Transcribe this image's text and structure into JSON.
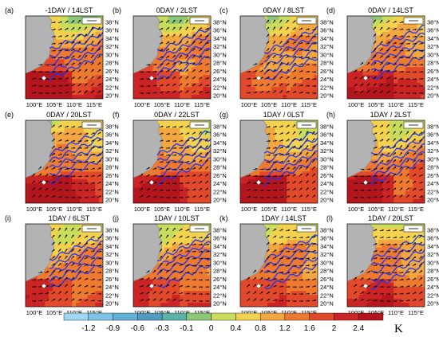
{
  "panels": [
    {
      "letter": "(a)",
      "title": "-1DAY / 14LST",
      "phase": 0.85
    },
    {
      "letter": "(b)",
      "title": "0DAY / 2LST",
      "phase": 0.55
    },
    {
      "letter": "(c)",
      "title": "0DAY / 8LST",
      "phase": 0.35
    },
    {
      "letter": "(d)",
      "title": "0DAY / 14LST",
      "phase": 0.75
    },
    {
      "letter": "(e)",
      "title": "0DAY / 20LST",
      "phase": 0.9
    },
    {
      "letter": "(f)",
      "title": "0DAY / 22LST",
      "phase": 0.8
    },
    {
      "letter": "(g)",
      "title": "1DAY / 0LST",
      "phase": 0.75
    },
    {
      "letter": "(h)",
      "title": "1DAY / 2LST",
      "phase": 0.7
    },
    {
      "letter": "(i)",
      "title": "1DAY / 6LST",
      "phase": 0.5
    },
    {
      "letter": "(j)",
      "title": "1DAY / 10LST",
      "phase": 0.55
    },
    {
      "letter": "(k)",
      "title": "1DAY / 14LST",
      "phase": 0.45
    },
    {
      "letter": "(l)",
      "title": "1DAY / 20LST",
      "phase": 0.6
    }
  ],
  "lat_labels": [
    "38°N",
    "36°N",
    "34°N",
    "32°N",
    "30°N",
    "28°N",
    "26°N",
    "24°N",
    "22°N",
    "20°N"
  ],
  "lon_labels": [
    "100°E",
    "105°E",
    "110°E",
    "115°E"
  ],
  "colorbar": {
    "labels": [
      "-1.2",
      "-0.9",
      "-0.6",
      "-0.3",
      "-0.1",
      "0",
      "0.4",
      "0.8",
      "1.2",
      "1.6",
      "2",
      "2.4"
    ],
    "unit": "K",
    "colors": [
      "#9fd6f3",
      "#7ec4e8",
      "#63b0d6",
      "#4f9cc0",
      "#5bb3a8",
      "#8cc878",
      "#c9dc5c",
      "#f3d250",
      "#f3a740",
      "#ee7a30",
      "#e2482a",
      "#cc2424",
      "#b5161e"
    ]
  }
}
